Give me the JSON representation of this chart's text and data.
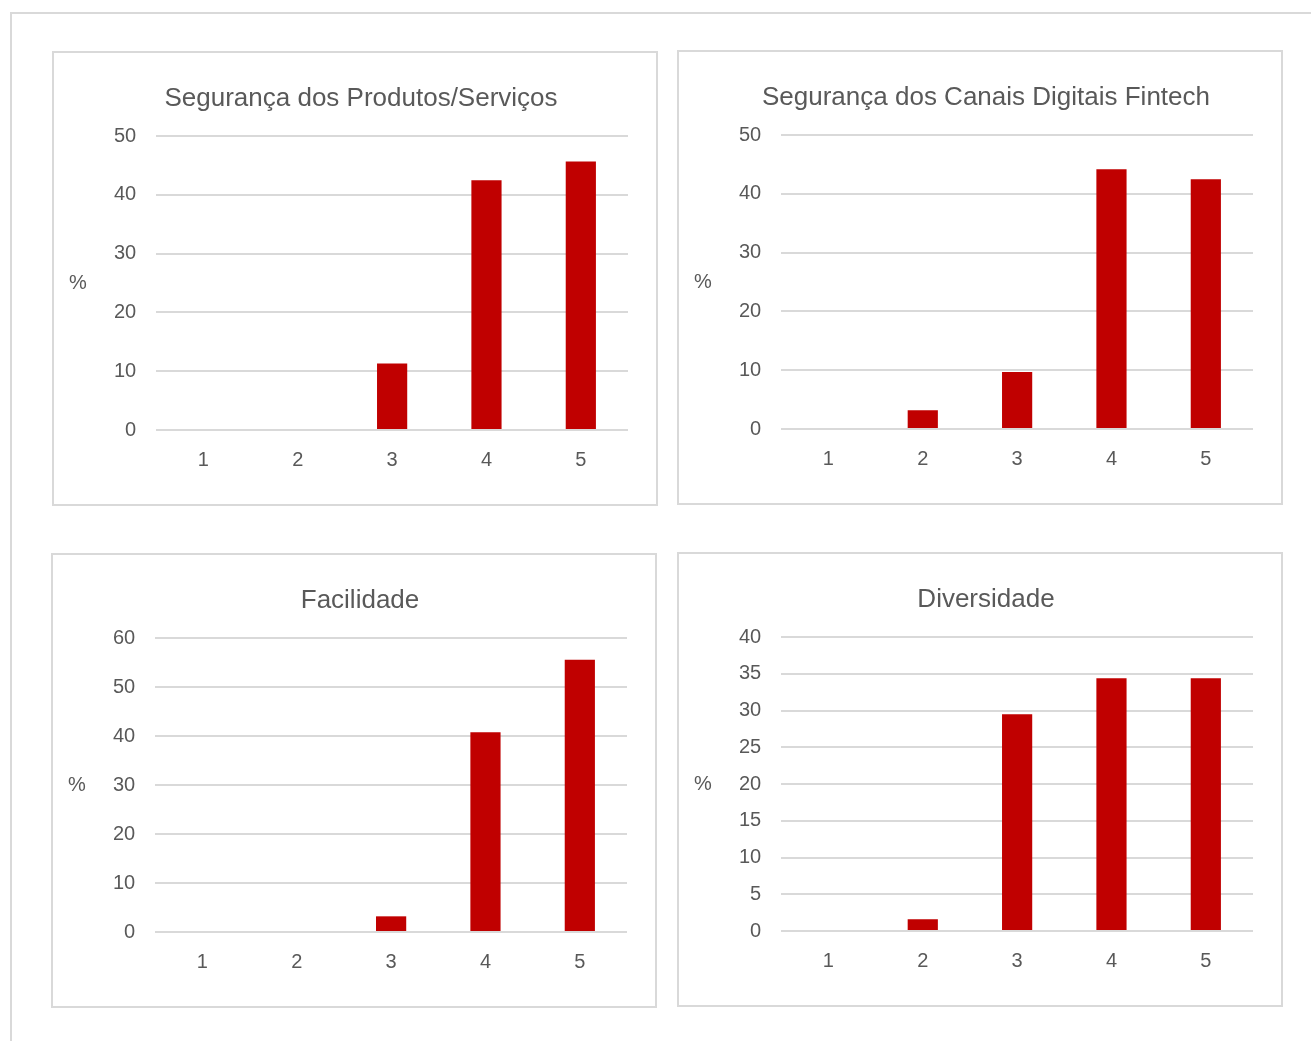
{
  "chart_data": [
    {
      "type": "bar",
      "title": "Segurança dos Produtos/Serviços",
      "ylabel": "%",
      "categories": [
        "1",
        "2",
        "3",
        "4",
        "5"
      ],
      "series": [
        {
          "color": "#c00000",
          "values": [
            0,
            0,
            11.3,
            42.5,
            45.7
          ]
        }
      ],
      "ylim": [
        0,
        50
      ],
      "yticks": [
        0,
        10,
        20,
        30,
        40,
        50
      ],
      "grid": "y",
      "legend": false
    },
    {
      "type": "bar",
      "title": "Segurança dos Canais Digitais Fintech",
      "ylabel": "%",
      "categories": [
        "1",
        "2",
        "3",
        "4",
        "5"
      ],
      "series": [
        {
          "color": "#c00000",
          "values": [
            0,
            3.2,
            9.7,
            44.2,
            42.5
          ]
        }
      ],
      "ylim": [
        0,
        50
      ],
      "yticks": [
        0,
        10,
        20,
        30,
        40,
        50
      ],
      "grid": "y",
      "legend": false
    },
    {
      "type": "bar",
      "title": "Facilidade",
      "ylabel": "%",
      "categories": [
        "1",
        "2",
        "3",
        "4",
        "5"
      ],
      "series": [
        {
          "color": "#c00000",
          "values": [
            0,
            0,
            3.2,
            40.8,
            55.6
          ]
        }
      ],
      "ylim": [
        0,
        60
      ],
      "yticks": [
        0,
        10,
        20,
        30,
        40,
        50,
        60
      ],
      "grid": "y",
      "legend": false
    },
    {
      "type": "bar",
      "title": "Diversidade",
      "ylabel": "%",
      "categories": [
        "1",
        "2",
        "3",
        "4",
        "5"
      ],
      "series": [
        {
          "color": "#c00000",
          "values": [
            0,
            1.6,
            29.5,
            34.4,
            34.4
          ]
        }
      ],
      "ylim": [
        0,
        40
      ],
      "yticks": [
        0,
        5,
        10,
        15,
        20,
        25,
        30,
        35,
        40
      ],
      "grid": "y",
      "legend": false
    }
  ]
}
